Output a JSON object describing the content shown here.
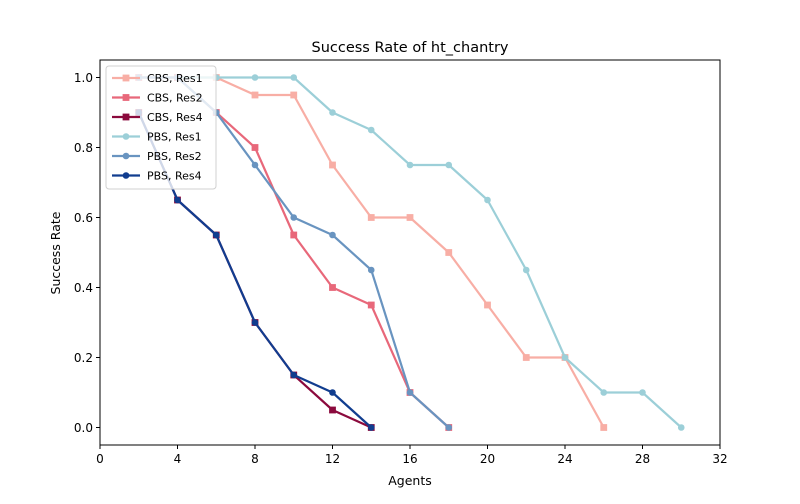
{
  "chart_data": {
    "type": "line",
    "title": "Success Rate of ht_chantry",
    "xlabel": "Agents",
    "ylabel": "Success Rate",
    "xlim": [
      0,
      32
    ],
    "ylim": [
      -0.05,
      1.05
    ],
    "xticks": [
      0,
      4,
      8,
      12,
      16,
      20,
      24,
      28,
      32
    ],
    "yticks": [
      0.0,
      0.2,
      0.4,
      0.6,
      0.8,
      1.0
    ],
    "xtick_labels": [
      "0",
      "4",
      "8",
      "12",
      "16",
      "20",
      "24",
      "28",
      "32"
    ],
    "ytick_labels": [
      "0.0",
      "0.2",
      "0.4",
      "0.6",
      "0.8",
      "1.0"
    ],
    "grid": false,
    "legend_position": "upper-left",
    "series": [
      {
        "name": "CBS, Res1",
        "color": "#f8aea5",
        "marker": "square",
        "x": [
          2,
          4,
          6,
          8,
          10,
          12,
          14,
          16,
          18,
          20,
          22,
          24,
          26
        ],
        "y": [
          1.0,
          1.0,
          1.0,
          0.95,
          0.95,
          0.75,
          0.6,
          0.6,
          0.5,
          0.35,
          0.2,
          0.2,
          0.0
        ]
      },
      {
        "name": "CBS, Res2",
        "color": "#e8687a",
        "marker": "square",
        "x": [
          2,
          4,
          6,
          8,
          10,
          12,
          14,
          16,
          18
        ],
        "y": [
          1.0,
          1.0,
          0.9,
          0.8,
          0.55,
          0.4,
          0.35,
          0.1,
          0.0
        ]
      },
      {
        "name": "CBS, Res4",
        "color": "#8b0a3d",
        "marker": "square",
        "x": [
          2,
          4,
          6,
          8,
          10,
          12,
          14
        ],
        "y": [
          0.9,
          0.65,
          0.55,
          0.3,
          0.15,
          0.05,
          0.0
        ]
      },
      {
        "name": "PBS, Res1",
        "color": "#9ccfd8",
        "marker": "circle",
        "x": [
          2,
          4,
          6,
          8,
          10,
          12,
          14,
          16,
          18,
          20,
          22,
          24,
          26,
          28,
          30
        ],
        "y": [
          1.0,
          1.0,
          1.0,
          1.0,
          1.0,
          0.9,
          0.85,
          0.75,
          0.75,
          0.65,
          0.45,
          0.2,
          0.1,
          0.1,
          0.0
        ]
      },
      {
        "name": "PBS, Res2",
        "color": "#6994c0",
        "marker": "circle",
        "x": [
          2,
          4,
          6,
          8,
          10,
          12,
          14,
          16,
          18
        ],
        "y": [
          1.0,
          1.0,
          0.9,
          0.75,
          0.6,
          0.55,
          0.45,
          0.1,
          0.0
        ]
      },
      {
        "name": "PBS, Res4",
        "color": "#113d8f",
        "marker": "circle",
        "x": [
          2,
          4,
          6,
          8,
          10,
          12,
          14
        ],
        "y": [
          0.9,
          0.65,
          0.55,
          0.3,
          0.15,
          0.1,
          0.0
        ]
      }
    ]
  }
}
